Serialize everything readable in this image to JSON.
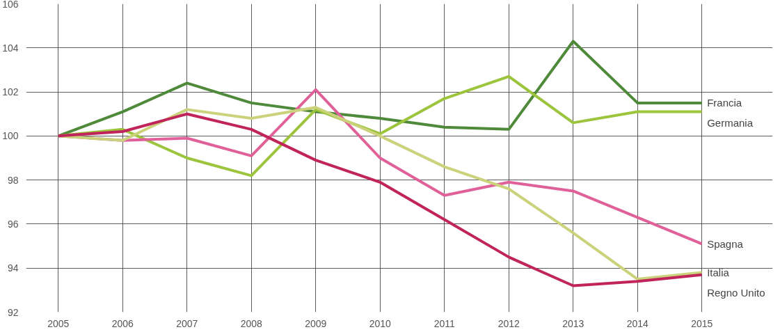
{
  "chart_data": {
    "type": "line",
    "x": [
      2005,
      2006,
      2007,
      2008,
      2009,
      2010,
      2011,
      2012,
      2013,
      2014,
      2015
    ],
    "xlim": [
      2004.5,
      2016.1
    ],
    "ylim": [
      92,
      106
    ],
    "xticks": [
      2005,
      2006,
      2007,
      2008,
      2009,
      2010,
      2011,
      2012,
      2013,
      2014,
      2015
    ],
    "yticks": [
      92,
      94,
      96,
      98,
      100,
      102,
      104,
      106
    ],
    "grid": true,
    "legend": false,
    "marker": "none",
    "line_style": "solid",
    "series": [
      {
        "name": "Francia",
        "color": "#4f8a3a",
        "values": [
          100,
          101.1,
          102.4,
          101.5,
          101.1,
          100.8,
          100.4,
          100.3,
          104.3,
          101.5,
          101.5
        ]
      },
      {
        "name": "Germania",
        "color": "#9cc43c",
        "values": [
          100,
          100.3,
          99.0,
          98.2,
          101.2,
          100.1,
          101.7,
          102.7,
          100.6,
          101.1,
          101.1
        ]
      },
      {
        "name": "Spagna",
        "color": "#e0609a",
        "values": [
          100,
          99.8,
          99.9,
          99.1,
          102.1,
          99.0,
          97.3,
          97.9,
          97.5,
          96.3,
          95.1
        ]
      },
      {
        "name": "Italia",
        "color": "#cbd27c",
        "values": [
          100,
          99.8,
          101.2,
          100.8,
          101.3,
          100.0,
          98.6,
          97.6,
          95.6,
          93.5,
          93.8
        ]
      },
      {
        "name": "Regno Unito",
        "color": "#c0245a",
        "values": [
          100,
          100.2,
          101.0,
          100.3,
          98.9,
          97.9,
          96.2,
          94.5,
          93.2,
          93.4,
          93.7
        ]
      }
    ]
  }
}
